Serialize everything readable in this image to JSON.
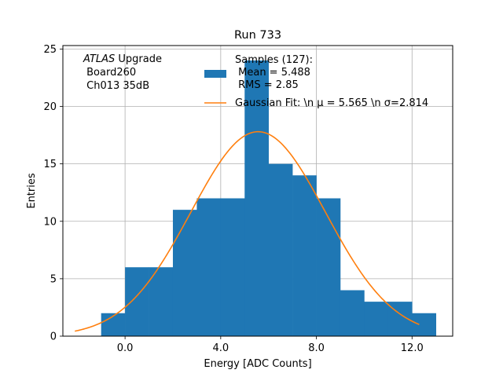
{
  "chart_data": {
    "type": "bar",
    "title": "Run 733",
    "xlabel": "Energy [ADC Counts]",
    "ylabel": "Entries",
    "xlim": [
      -2.6,
      13.7
    ],
    "ylim": [
      0,
      25.3
    ],
    "grid": true,
    "x_ticks": [
      0,
      4,
      8,
      12
    ],
    "x_tick_labels": [
      "0.0",
      "4.0",
      "8.0",
      "12.0"
    ],
    "y_ticks": [
      0,
      5,
      10,
      15,
      20,
      25
    ],
    "y_tick_labels": [
      "0",
      "5",
      "10",
      "15",
      "20",
      "25"
    ],
    "bin_edges": [
      -1,
      0,
      1,
      2,
      3,
      4,
      5,
      6,
      7,
      8,
      9,
      10,
      11,
      12,
      13
    ],
    "values": [
      2,
      6,
      6,
      11,
      12,
      12,
      24,
      15,
      14,
      12,
      4,
      3,
      3,
      2
    ],
    "bar_color": "#1f77b4",
    "fit": {
      "amplitude": 17.8,
      "mu": 5.565,
      "sigma": 2.814,
      "x_range": [
        -2.1,
        12.3
      ],
      "color": "#ff7f0e"
    },
    "annotation": {
      "line1_italic": "ATLAS",
      "line1_rest": " Upgrade",
      "line2": " Board260",
      "line3": " Ch013 35dB"
    },
    "legend": {
      "position": "top-right",
      "hist_label_lines": [
        "Samples (127):",
        " Mean = 5.488",
        " RMS = 2.85"
      ],
      "fit_label": "Gaussian Fit: \\n μ = 5.565 \\n σ=2.814"
    }
  }
}
